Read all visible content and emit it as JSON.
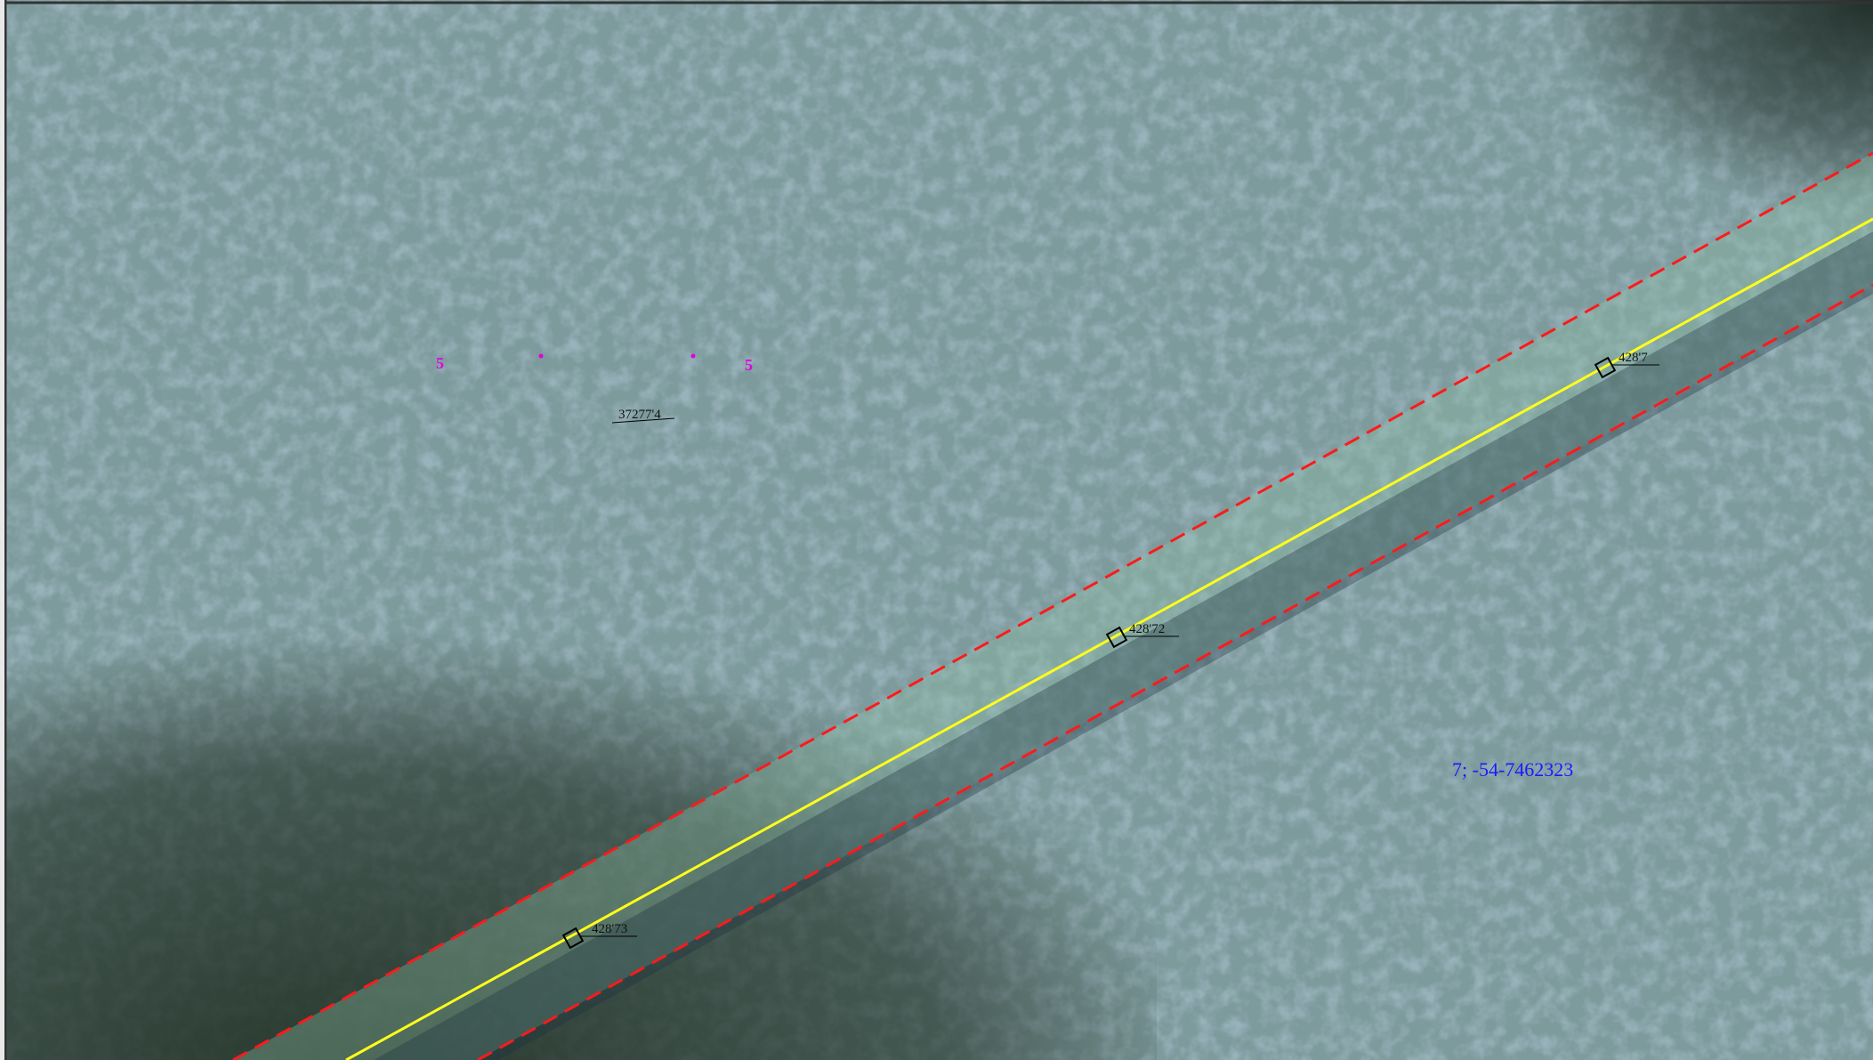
{
  "map": {
    "point_labels": [
      "428'73",
      "428'72",
      "428'7"
    ],
    "area_label": "37277'4",
    "parcel_label": "7; -54-7462323",
    "magenta_labels": [
      "5",
      "5"
    ]
  }
}
